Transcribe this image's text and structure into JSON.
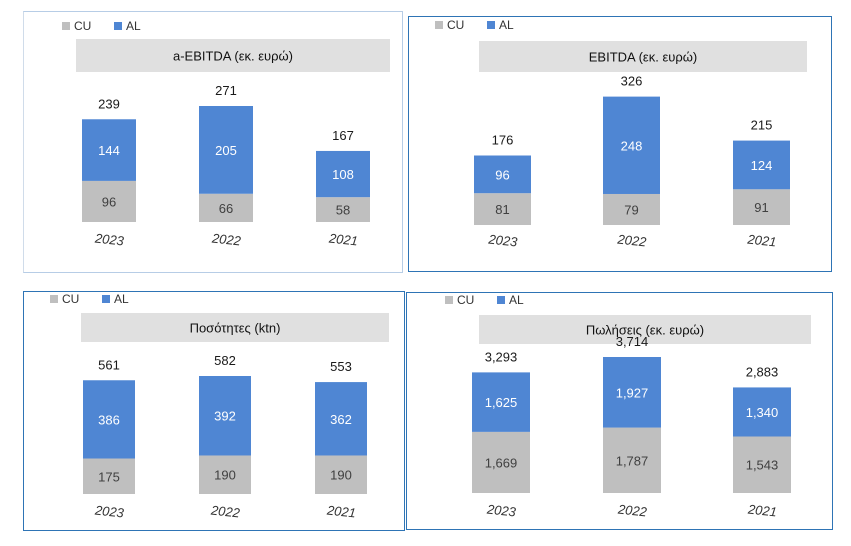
{
  "legend": {
    "cu_label": "CU",
    "al_label": "AL"
  },
  "colors": {
    "cu": "#bfbfbf",
    "al": "#4f86d3",
    "title_bar": "#e0e0e0",
    "border": "#2e74b5"
  },
  "chart_data": [
    {
      "type": "bar",
      "stacked": true,
      "title": "a-EBITDA (εκ. ευρώ)",
      "categories": [
        "2023",
        "2022",
        "2021"
      ],
      "series": [
        {
          "name": "CU",
          "values": [
            96,
            66,
            58
          ],
          "labels": [
            "96",
            "66",
            "58"
          ]
        },
        {
          "name": "AL",
          "values": [
            144,
            205,
            108
          ],
          "labels": [
            "144",
            "205",
            "108"
          ]
        }
      ],
      "totals": [
        239,
        271,
        167
      ],
      "total_labels": [
        "239",
        "271",
        "167"
      ]
    },
    {
      "type": "bar",
      "stacked": true,
      "title": "EBITDA (εκ. ευρώ)",
      "categories": [
        "2023",
        "2022",
        "2021"
      ],
      "series": [
        {
          "name": "CU",
          "values": [
            81,
            79,
            91
          ],
          "labels": [
            "81",
            "79",
            "91"
          ]
        },
        {
          "name": "AL",
          "values": [
            96,
            248,
            124
          ],
          "labels": [
            "96",
            "248",
            "124"
          ]
        }
      ],
      "totals": [
        176,
        326,
        215
      ],
      "total_labels": [
        "176",
        "326",
        "215"
      ]
    },
    {
      "type": "bar",
      "stacked": true,
      "title": "Ποσότητες (ktn)",
      "categories": [
        "2023",
        "2022",
        "2021"
      ],
      "series": [
        {
          "name": "CU",
          "values": [
            175,
            190,
            190
          ],
          "labels": [
            "175",
            "190",
            "190"
          ]
        },
        {
          "name": "AL",
          "values": [
            386,
            392,
            362
          ],
          "labels": [
            "386",
            "392",
            "362"
          ]
        }
      ],
      "totals": [
        561,
        582,
        553
      ],
      "total_labels": [
        "561",
        "582",
        "553"
      ]
    },
    {
      "type": "bar",
      "stacked": true,
      "title": "Πωλήσεις (εκ. ευρώ)",
      "categories": [
        "2023",
        "2022",
        "2021"
      ],
      "series": [
        {
          "name": "CU",
          "values": [
            1669,
            1787,
            1543
          ],
          "labels": [
            "1,669",
            "1,787",
            "1,543"
          ]
        },
        {
          "name": "AL",
          "values": [
            1625,
            1927,
            1340
          ],
          "labels": [
            "1,625",
            "1,927",
            "1,340"
          ]
        }
      ],
      "totals": [
        3293,
        3714,
        2883
      ],
      "total_labels": [
        "3,293",
        "3,714",
        "2,883"
      ]
    }
  ]
}
